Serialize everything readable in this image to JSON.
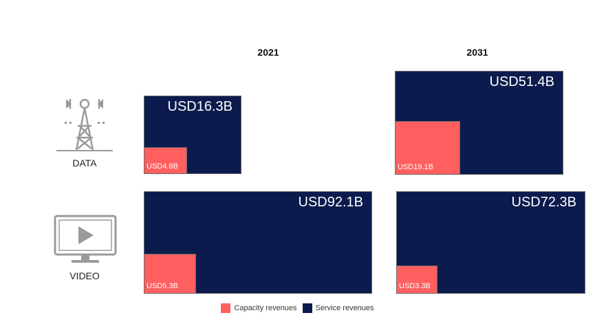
{
  "chart_data": {
    "type": "area-proportional blocks",
    "columns": [
      "2021",
      "2031"
    ],
    "rows": [
      "DATA",
      "VIDEO"
    ],
    "series": [
      {
        "name": "Capacity revenues",
        "color": "#FF5F5F"
      },
      {
        "name": "Service revenues",
        "color": "#0C1B4D"
      }
    ],
    "cells": [
      {
        "row": "DATA",
        "column": "2021",
        "total": 16.3,
        "total_label": "USD16.3B",
        "capacity": 4.8,
        "capacity_label": "USD4.8B"
      },
      {
        "row": "DATA",
        "column": "2031",
        "total": 51.4,
        "total_label": "USD51.4B",
        "capacity": 19.1,
        "capacity_label": "USD19.1B"
      },
      {
        "row": "VIDEO",
        "column": "2021",
        "total": 92.1,
        "total_label": "USD92.1B",
        "capacity": 5.3,
        "capacity_label": "USD5.3B"
      },
      {
        "row": "VIDEO",
        "column": "2031",
        "total": 72.3,
        "total_label": "USD72.3B",
        "capacity": 3.3,
        "capacity_label": "USD3.3B"
      }
    ],
    "legend": [
      "Capacity revenues",
      "Service revenues"
    ],
    "legend_position": "bottom-center"
  },
  "icons": {
    "data": "cell-tower-icon",
    "video": "monitor-play-icon"
  },
  "colors": {
    "service": "#0C1B4D",
    "capacity": "#FF5F5F",
    "icon": "#9a9a9a"
  }
}
